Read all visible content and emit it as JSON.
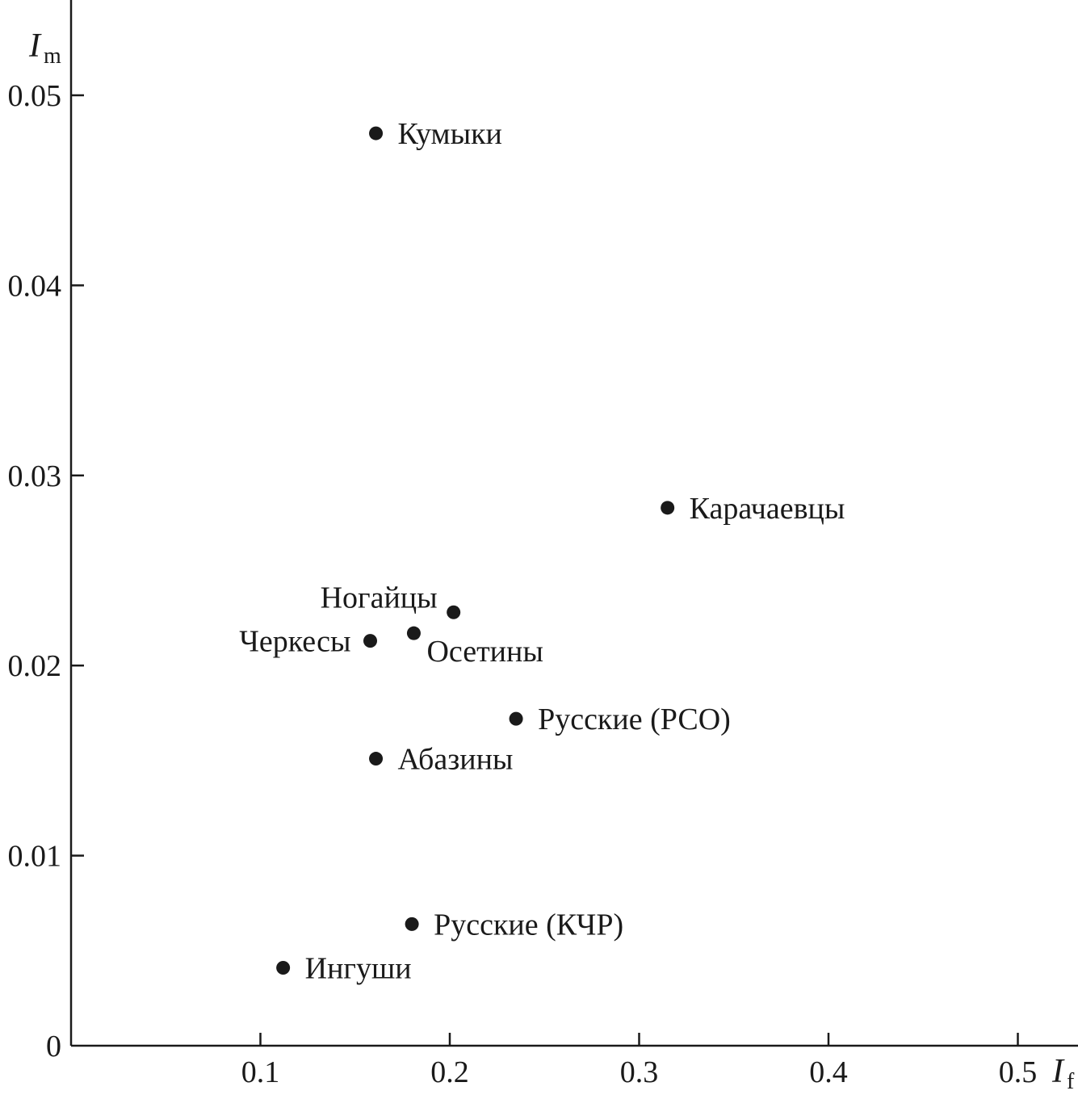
{
  "chart_data": {
    "type": "scatter",
    "title": "",
    "xlabel": {
      "main": "I",
      "sub": "f"
    },
    "ylabel": {
      "main": "I",
      "sub": "m"
    },
    "xlim": [
      0,
      0.53
    ],
    "ylim": [
      0,
      0.055
    ],
    "x_ticks": [
      {
        "value": 0.1,
        "label": "0.1"
      },
      {
        "value": 0.2,
        "label": "0.2"
      },
      {
        "value": 0.3,
        "label": "0.3"
      },
      {
        "value": 0.4,
        "label": "0.4"
      },
      {
        "value": 0.5,
        "label": "0.5"
      }
    ],
    "y_ticks": [
      {
        "value": 0,
        "label": "0"
      },
      {
        "value": 0.01,
        "label": "0.01"
      },
      {
        "value": 0.02,
        "label": "0.02"
      },
      {
        "value": 0.03,
        "label": "0.03"
      },
      {
        "value": 0.04,
        "label": "0.04"
      },
      {
        "value": 0.05,
        "label": "0.05"
      }
    ],
    "grid": false,
    "points": [
      {
        "label": "Кумыки",
        "x": 0.161,
        "y": 0.048,
        "label_side": "right"
      },
      {
        "label": "Карачаевцы",
        "x": 0.315,
        "y": 0.0283,
        "label_side": "right"
      },
      {
        "label": "Ногайцы",
        "x": 0.202,
        "y": 0.0228,
        "label_side": "above-left"
      },
      {
        "label": "Осетины",
        "x": 0.181,
        "y": 0.0217,
        "label_side": "below-right"
      },
      {
        "label": "Черкесы",
        "x": 0.158,
        "y": 0.0213,
        "label_side": "left"
      },
      {
        "label": "Русские (РСО)",
        "x": 0.235,
        "y": 0.0172,
        "label_side": "right"
      },
      {
        "label": "Абазины",
        "x": 0.161,
        "y": 0.0151,
        "label_side": "right"
      },
      {
        "label": "Русские (КЧР)",
        "x": 0.18,
        "y": 0.0064,
        "label_side": "right"
      },
      {
        "label": "Ингуши",
        "x": 0.112,
        "y": 0.0041,
        "label_side": "right"
      }
    ]
  }
}
